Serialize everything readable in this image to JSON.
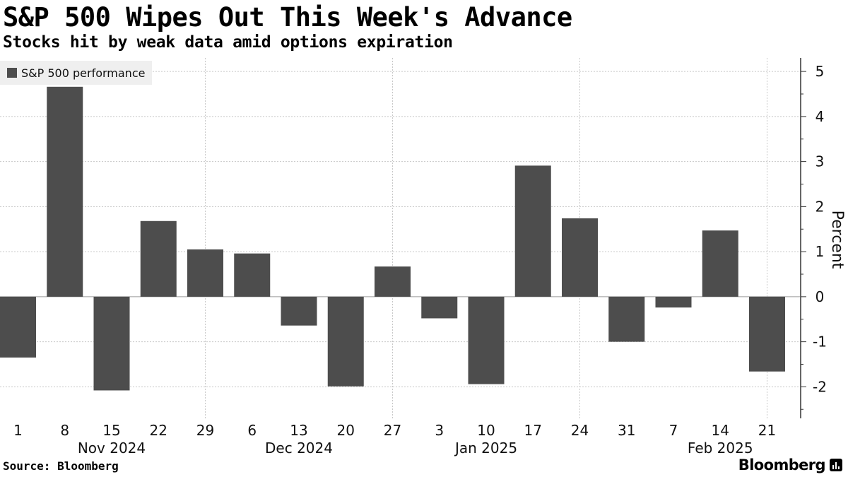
{
  "header": {
    "title": "S&P 500 Wipes Out This Week's Advance",
    "subtitle": "Stocks hit by weak data amid options expiration"
  },
  "legend": {
    "label": "S&P 500 performance"
  },
  "footer": {
    "source": "Source: Bloomberg",
    "brand": "Bloomberg"
  },
  "colors": {
    "bar": "#4d4d4d",
    "grid": "#c8c8c8",
    "axis": "#333333",
    "legend_bg": "#efefef"
  },
  "chart_data": {
    "type": "bar",
    "title": "S&P 500 Wipes Out This Week's Advance",
    "subtitle": "Stocks hit by weak data amid options expiration",
    "ylabel": "Percent",
    "xlabel": "",
    "ylim": [
      -2.7,
      5.3
    ],
    "yticks": [
      -2,
      -1,
      0,
      1,
      2,
      3,
      4,
      5
    ],
    "grid": true,
    "legend_position": "top-left",
    "categories": [
      "1",
      "8",
      "15",
      "22",
      "29",
      "6",
      "13",
      "20",
      "27",
      "3",
      "10",
      "17",
      "24",
      "31",
      "7",
      "14",
      "21"
    ],
    "month_labels": [
      {
        "label": "Nov 2024",
        "under_index": 2
      },
      {
        "label": "Dec 2024",
        "under_index": 6
      },
      {
        "label": "Jan 2025",
        "under_index": 10
      },
      {
        "label": "Feb 2025",
        "under_index": 15
      }
    ],
    "series": [
      {
        "name": "S&P 500 performance",
        "values": [
          -1.35,
          4.66,
          -2.08,
          1.68,
          1.05,
          0.96,
          -0.64,
          -1.99,
          0.67,
          -0.48,
          -1.94,
          2.91,
          1.74,
          -1.0,
          -0.24,
          1.47,
          -1.66
        ]
      }
    ]
  }
}
